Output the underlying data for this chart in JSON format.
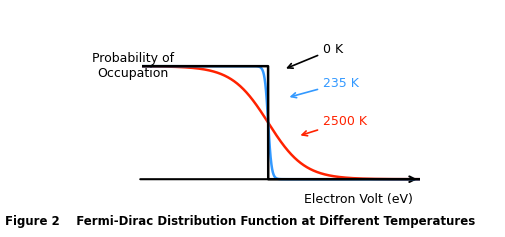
{
  "title": "Figure 2    Fermi-Dirac Distribution Function at Different Temperatures",
  "ylabel": "Probability of\nOccupation",
  "xlabel": "Electron Volt (eV)",
  "fermi_energy": 0.0,
  "x_min": -1.5,
  "x_max": 1.8,
  "y_min": -0.05,
  "y_max": 1.25,
  "T0_color": "#000000",
  "T235_color": "#3399FF",
  "T2500_color": "#FF2200",
  "label_0K": "0 K",
  "label_235K": "235 K",
  "label_2500K": "2500 K",
  "background_color": "#ffffff",
  "fig_width": 5.06,
  "fig_height": 2.37,
  "dpi": 100
}
